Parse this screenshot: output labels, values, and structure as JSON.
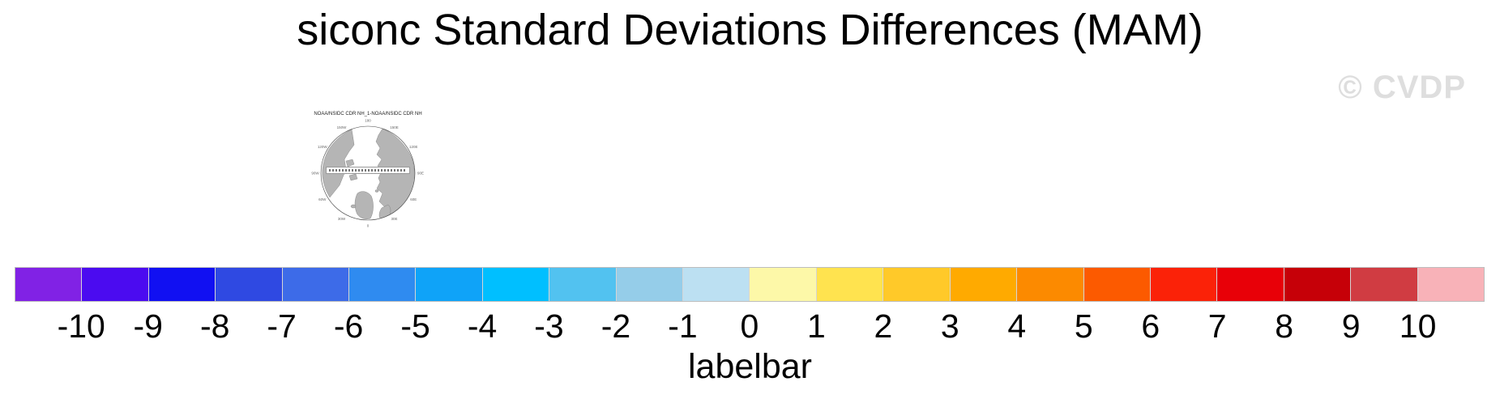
{
  "page": {
    "title": "siconc Standard Deviations Differences (MAM)",
    "watermark": "© CVDP"
  },
  "map": {
    "title": "NOAA/NSIDC CDR NH_1-NOAA/NSIDC CDR NH",
    "projection": "northern-hemisphere polar stereographic",
    "meridian_labels": [
      {
        "text": "180",
        "angle": 0
      },
      {
        "text": "150E",
        "angle": 30
      },
      {
        "text": "120E",
        "angle": 60
      },
      {
        "text": "90E",
        "angle": 90
      },
      {
        "text": "60E",
        "angle": 120
      },
      {
        "text": "30E",
        "angle": 150
      },
      {
        "text": "0",
        "angle": 180
      },
      {
        "text": "30W",
        "angle": 210
      },
      {
        "text": "60W",
        "angle": 240
      },
      {
        "text": "90W",
        "angle": 270
      },
      {
        "text": "120W",
        "angle": 300
      },
      {
        "text": "150W",
        "angle": 330
      }
    ]
  },
  "colorbar": {
    "caption": "labelbar",
    "tick_labels": [
      "-10",
      "-9",
      "-8",
      "-7",
      "-6",
      "-5",
      "-4",
      "-3",
      "-2",
      "-1",
      "0",
      "1",
      "2",
      "3",
      "4",
      "5",
      "6",
      "7",
      "8",
      "9",
      "10"
    ],
    "segment_colors": [
      "#8122E5",
      "#4B0BF0",
      "#1110F2",
      "#2F49E2",
      "#3D6BE8",
      "#2F8BF0",
      "#0FA3F8",
      "#00BFFF",
      "#52C2F0",
      "#95CDE9",
      "#BCE0F2",
      "#FDF8A8",
      "#FFE34F",
      "#FFC929",
      "#FFAA00",
      "#FC8A00",
      "#FC5A00",
      "#FB2208",
      "#E80008",
      "#C60008",
      "#D03C42",
      "#F8B2B8"
    ]
  },
  "chart_data": {
    "type": "heatmap",
    "title": "siconc Standard Deviations Differences (MAM)",
    "xlabel": "labelbar",
    "ylabel": "",
    "categories": [
      -10,
      -9,
      -8,
      -7,
      -6,
      -5,
      -4,
      -3,
      -2,
      -1,
      0,
      1,
      2,
      3,
      4,
      5,
      6,
      7,
      8,
      9,
      10
    ],
    "bin_colors": [
      "#8122E5",
      "#4B0BF0",
      "#1110F2",
      "#2F49E2",
      "#3D6BE8",
      "#2F8BF0",
      "#0FA3F8",
      "#00BFFF",
      "#52C2F0",
      "#95CDE9",
      "#BCE0F2",
      "#FDF8A8",
      "#FFE34F",
      "#FFC929",
      "#FFAA00",
      "#FC8A00",
      "#FC5A00",
      "#FB2208",
      "#E80008",
      "#C60008",
      "#D03C42",
      "#F8B2B8"
    ],
    "axis_range": [
      -10,
      10
    ],
    "legend_position": "bottom",
    "note": "22 color bins: underflow, 20 unit bins between -10 and 10, overflow"
  }
}
